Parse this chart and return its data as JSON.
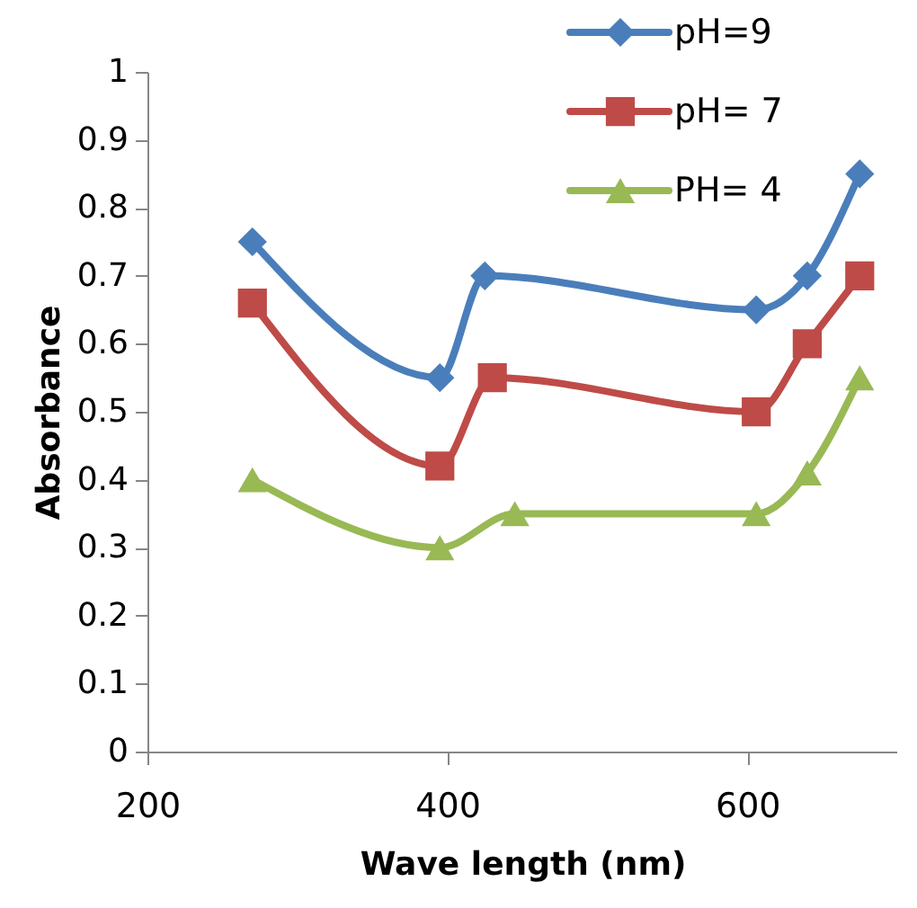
{
  "chart_data": {
    "type": "line",
    "xlabel": "Wave length (nm)",
    "ylabel": "Absorbance",
    "xlim": [
      200,
      700
    ],
    "xticks": [
      200,
      400,
      600
    ],
    "ylim": [
      0,
      1
    ],
    "yticks": [
      0,
      0.1,
      0.2,
      0.3,
      0.4,
      0.5,
      0.6,
      0.7,
      0.8,
      0.9,
      1
    ],
    "grid": false,
    "legend": "top right",
    "series": [
      {
        "name": "pH=9",
        "color": "#4a7ebb",
        "marker": "diamond",
        "x": [
          270,
          395,
          425,
          606,
          640,
          675
        ],
        "values": [
          0.75,
          0.55,
          0.7,
          0.65,
          0.7,
          0.85
        ]
      },
      {
        "name": "pH= 7",
        "color": "#be4b48",
        "marker": "square",
        "x": [
          270,
          395,
          430,
          606,
          640,
          675
        ],
        "values": [
          0.66,
          0.42,
          0.55,
          0.5,
          0.6,
          0.7
        ]
      },
      {
        "name": "PH= 4",
        "color": "#98b954",
        "marker": "triangle",
        "x": [
          270,
          395,
          445,
          606,
          640,
          675
        ],
        "values": [
          0.4,
          0.3,
          0.35,
          0.35,
          0.41,
          0.55
        ]
      }
    ]
  }
}
